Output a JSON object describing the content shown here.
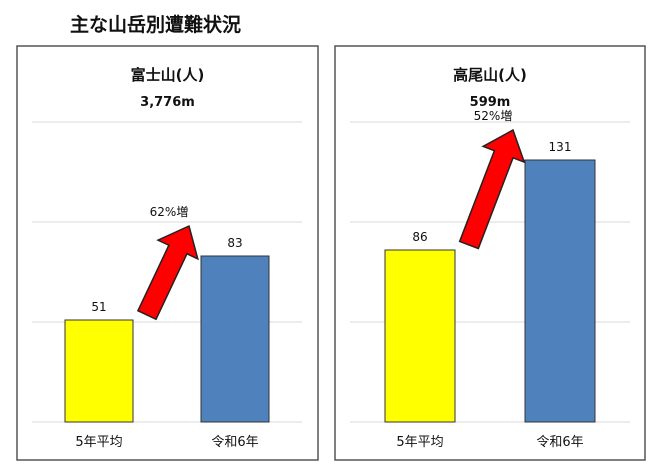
{
  "title": "主な山岳別遭難状況",
  "chart_data": [
    {
      "type": "bar",
      "title": "富士山(人)",
      "subtitle": "3,776m",
      "categories": [
        "5年平均",
        "令和6年"
      ],
      "values": [
        51,
        83
      ],
      "colors": [
        "#ffff00",
        "#4f81bd"
      ],
      "annotation": "62%増",
      "ylim": [
        0,
        150
      ],
      "grid": true
    },
    {
      "type": "bar",
      "title": "高尾山(人)",
      "subtitle": "599m",
      "categories": [
        "5年平均",
        "令和6年"
      ],
      "values": [
        86,
        131
      ],
      "colors": [
        "#ffff00",
        "#4f81bd"
      ],
      "annotation": "52%増",
      "ylim": [
        0,
        150
      ],
      "grid": true
    }
  ],
  "arrow_color": "#ff0000"
}
